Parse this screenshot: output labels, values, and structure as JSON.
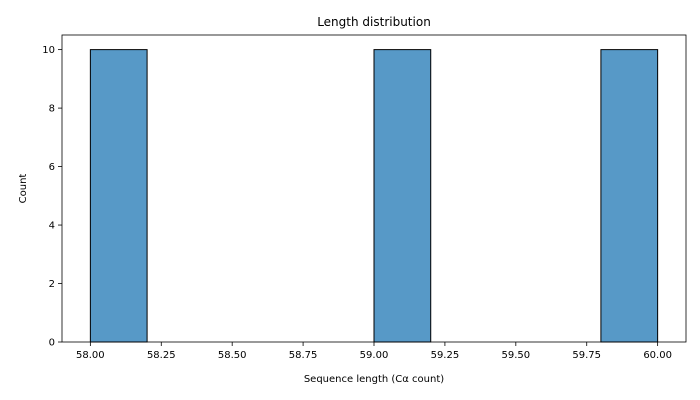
{
  "chart_data": {
    "type": "bar",
    "title": "Length distribution",
    "xlabel": "Sequence length (Cα count)",
    "ylabel": "Count",
    "xlim": [
      57.9,
      60.1
    ],
    "ylim": [
      0,
      10.5
    ],
    "xticks": [
      58.0,
      58.25,
      58.5,
      58.75,
      59.0,
      59.25,
      59.5,
      59.75,
      60.0
    ],
    "xtick_labels": [
      "58.00",
      "58.25",
      "58.50",
      "58.75",
      "59.00",
      "59.25",
      "59.50",
      "59.75",
      "60.00"
    ],
    "yticks": [
      0,
      2,
      4,
      6,
      8,
      10
    ],
    "ytick_labels": [
      "0",
      "2",
      "4",
      "6",
      "8",
      "10"
    ],
    "bins": [
      {
        "x0": 58.0,
        "x1": 58.2,
        "count": 10
      },
      {
        "x0": 59.0,
        "x1": 59.2,
        "count": 10
      },
      {
        "x0": 59.8,
        "x1": 60.0,
        "count": 10
      }
    ],
    "bar_color": "#5799c7",
    "edge_color": "#000000",
    "grid": false,
    "legend": "none"
  }
}
